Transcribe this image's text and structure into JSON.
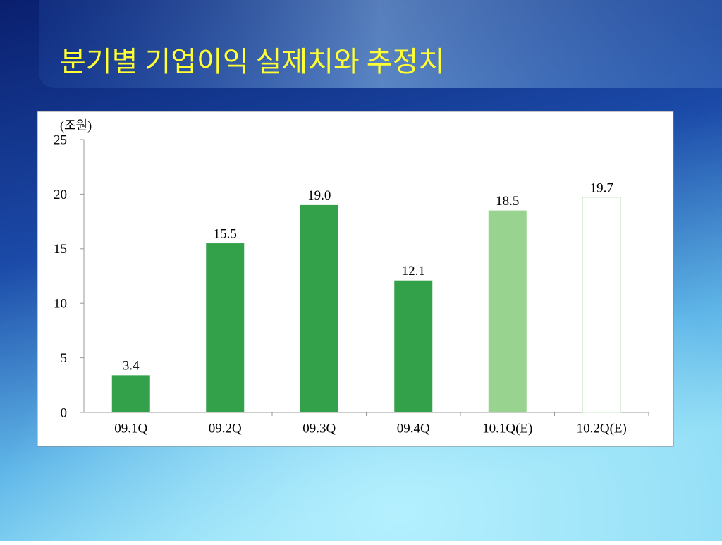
{
  "chart_data": {
    "type": "bar",
    "title": "분기별 기업이익 실제치와 추정치",
    "unit_label": "(조원)",
    "categories": [
      "09.1Q",
      "09.2Q",
      "09.3Q",
      "09.4Q",
      "10.1Q(E)",
      "10.2Q(E)"
    ],
    "values": [
      3.4,
      15.5,
      19.0,
      12.1,
      18.5,
      19.7
    ],
    "value_labels": [
      "3.4",
      "15.5",
      "19.0",
      "12.1",
      "18.5",
      "19.7"
    ],
    "colors": [
      "#33a04a",
      "#33a04a",
      "#33a04a",
      "#33a04a",
      "#98d490",
      "#ffffff"
    ],
    "ylim": [
      0,
      25
    ],
    "yticks": [
      0,
      5,
      10,
      15,
      20,
      25
    ]
  }
}
